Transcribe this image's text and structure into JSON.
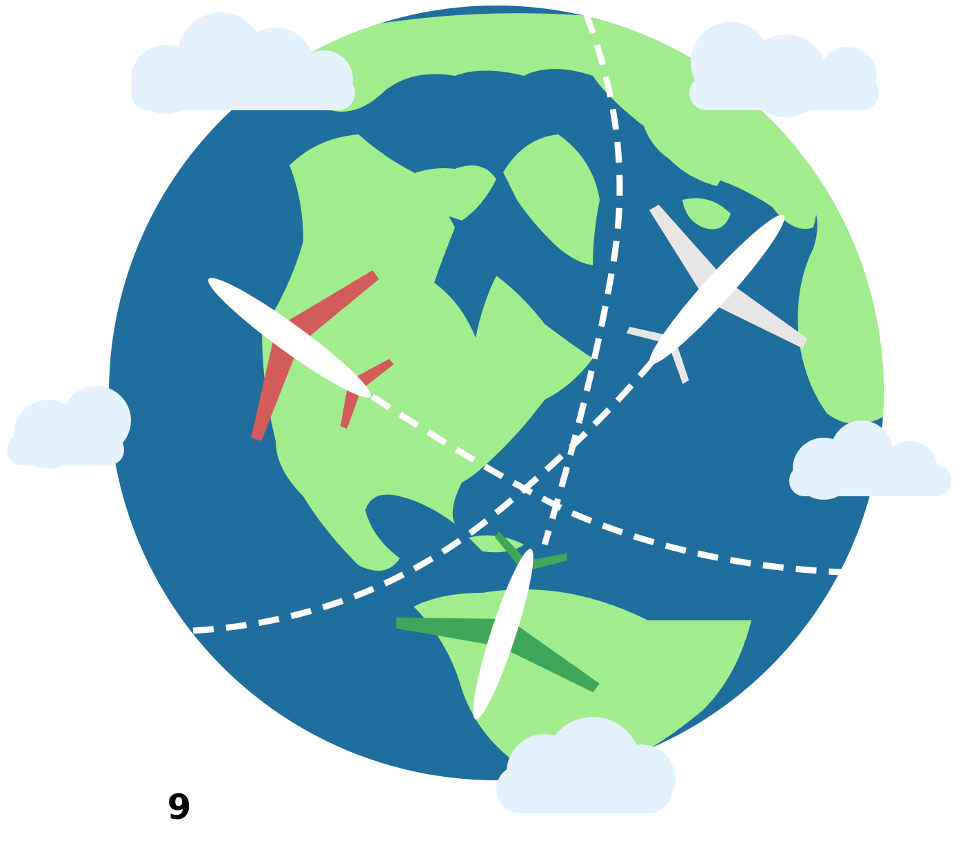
{
  "label": "9"
}
